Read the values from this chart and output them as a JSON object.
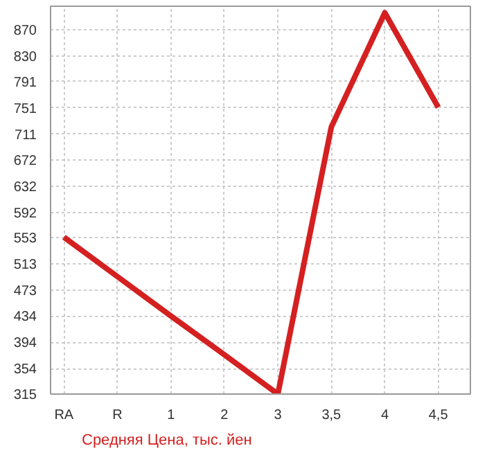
{
  "chart_data": {
    "type": "line",
    "categories": [
      "RA",
      "R",
      "1",
      "2",
      "3",
      "3,5",
      "4",
      "4,5"
    ],
    "series": [
      {
        "name": "Средняя Цена, тыс. йен",
        "color": "#d42020",
        "values": [
          554,
          494,
          434,
          375,
          315,
          722,
          896,
          752
        ]
      }
    ],
    "ylim": [
      315,
      906
    ],
    "yticks": [
      315,
      354,
      394,
      434,
      473,
      513,
      553,
      592,
      632,
      672,
      711,
      751,
      791,
      830,
      870
    ],
    "grid": true,
    "legend": "bottom",
    "marker": "none",
    "line_style": "solid"
  }
}
